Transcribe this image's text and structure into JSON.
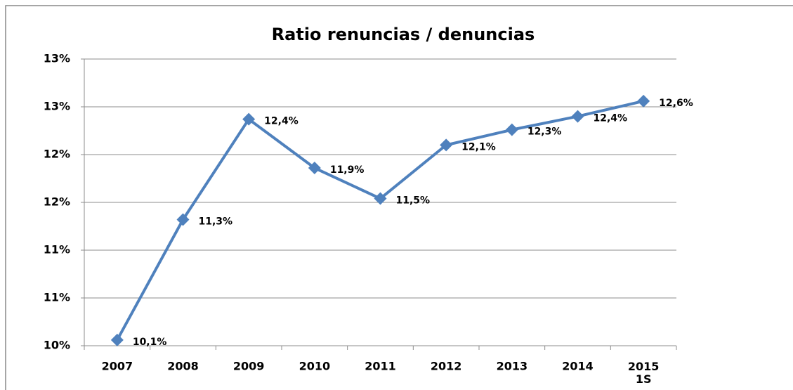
{
  "chart_data": {
    "type": "line",
    "title": "Ratio renuncias / denuncias",
    "categories": [
      "2007",
      "2008",
      "2009",
      "2010",
      "2011",
      "2012",
      "2013",
      "2014",
      "2015\n1S"
    ],
    "series": [
      {
        "name": "Ratio",
        "color": "#4f81bd",
        "values": [
          10.06,
          11.32,
          12.37,
          11.86,
          11.54,
          12.1,
          12.26,
          12.4,
          12.56
        ],
        "value_labels": [
          "10,1%",
          "11,3%",
          "12,4%",
          "11,9%",
          "11,5%",
          "12,1%",
          "12,3%",
          "12,4%",
          "12,6%"
        ]
      }
    ],
    "ylim": [
      10,
      13
    ],
    "yticks": [
      {
        "value": 10,
        "label": "10%"
      },
      {
        "value": 10.5,
        "label": "11%"
      },
      {
        "value": 11,
        "label": "11%"
      },
      {
        "value": 11.5,
        "label": "12%"
      },
      {
        "value": 12,
        "label": "12%"
      },
      {
        "value": 12.5,
        "label": "13%"
      },
      {
        "value": 13,
        "label": "13%"
      }
    ],
    "grid": true
  }
}
